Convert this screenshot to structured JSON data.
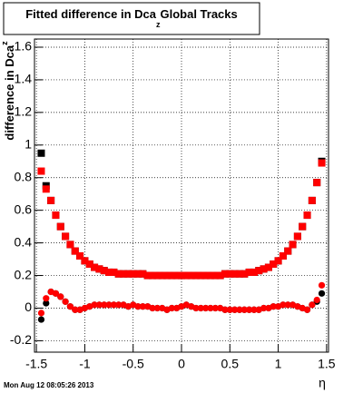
{
  "chart_data": {
    "type": "scatter",
    "title": "Fitted difference in Dca",
    "title_subscript": "z",
    "title_end": "Global Tracks",
    "x_label": "η",
    "y_label": "difference in Dca",
    "y_label_subscript": "z",
    "x": [
      -1.45,
      -1.4,
      -1.35,
      -1.3,
      -1.25,
      -1.2,
      -1.15,
      -1.1,
      -1.05,
      -1.0,
      -0.95,
      -0.9,
      -0.85,
      -0.8,
      -0.75,
      -0.7,
      -0.65,
      -0.6,
      -0.55,
      -0.5,
      -0.45,
      -0.4,
      -0.35,
      -0.3,
      -0.25,
      -0.2,
      -0.15,
      -0.1,
      -0.05,
      0,
      0.05,
      0.1,
      0.15,
      0.2,
      0.25,
      0.3,
      0.35,
      0.4,
      0.45,
      0.5,
      0.55,
      0.6,
      0.65,
      0.7,
      0.75,
      0.8,
      0.85,
      0.9,
      0.95,
      1.0,
      1.05,
      1.1,
      1.15,
      1.2,
      1.25,
      1.3,
      1.35,
      1.4,
      1.45
    ],
    "series": [
      {
        "color": "#000000",
        "marker": "square",
        "values": [
          0.95,
          0.75,
          0.66,
          0.57,
          0.5,
          0.44,
          0.39,
          0.35,
          0.32,
          0.29,
          0.27,
          0.25,
          0.24,
          0.23,
          0.22,
          0.22,
          0.21,
          0.21,
          0.21,
          0.21,
          0.21,
          0.21,
          0.2,
          0.2,
          0.2,
          0.2,
          0.2,
          0.2,
          0.2,
          0.2,
          0.2,
          0.2,
          0.2,
          0.2,
          0.2,
          0.2,
          0.2,
          0.2,
          0.21,
          0.21,
          0.21,
          0.21,
          0.21,
          0.22,
          0.22,
          0.23,
          0.24,
          0.25,
          0.27,
          0.29,
          0.32,
          0.35,
          0.39,
          0.44,
          0.5,
          0.57,
          0.66,
          0.77,
          0.9
        ]
      },
      {
        "color": "#ff0000",
        "marker": "square",
        "values": [
          0.84,
          0.73,
          0.66,
          0.57,
          0.5,
          0.44,
          0.39,
          0.35,
          0.32,
          0.29,
          0.27,
          0.25,
          0.24,
          0.23,
          0.22,
          0.22,
          0.21,
          0.21,
          0.21,
          0.21,
          0.21,
          0.21,
          0.2,
          0.2,
          0.2,
          0.2,
          0.2,
          0.2,
          0.2,
          0.2,
          0.2,
          0.2,
          0.2,
          0.2,
          0.2,
          0.2,
          0.2,
          0.2,
          0.21,
          0.21,
          0.21,
          0.21,
          0.21,
          0.22,
          0.22,
          0.23,
          0.24,
          0.25,
          0.27,
          0.29,
          0.32,
          0.35,
          0.39,
          0.44,
          0.5,
          0.57,
          0.66,
          0.77,
          0.89
        ]
      },
      {
        "color": "#000000",
        "marker": "circle",
        "values": [
          -0.07,
          0.03,
          0.1,
          0.09,
          0.07,
          0.04,
          0.01,
          -0.01,
          -0.01,
          0.0,
          0.01,
          0.02,
          0.02,
          0.02,
          0.02,
          0.02,
          0.02,
          0.02,
          0.01,
          0.02,
          0.01,
          0.01,
          0.01,
          0.0,
          0.0,
          0.0,
          -0.01,
          0.0,
          0.0,
          0.01,
          0.02,
          0.01,
          0.0,
          0.0,
          0.0,
          0.0,
          0.0,
          0.0,
          -0.01,
          -0.01,
          -0.01,
          -0.01,
          -0.01,
          -0.01,
          -0.01,
          -0.01,
          0.0,
          0.0,
          0.01,
          0.01,
          0.02,
          0.02,
          0.02,
          0.01,
          0.0,
          -0.01,
          0.02,
          0.04,
          0.09
        ]
      },
      {
        "color": "#ff0000",
        "marker": "circle",
        "values": [
          -0.03,
          0.06,
          0.1,
          0.09,
          0.07,
          0.04,
          0.01,
          -0.01,
          -0.01,
          0.0,
          0.01,
          0.02,
          0.02,
          0.02,
          0.02,
          0.02,
          0.02,
          0.02,
          0.01,
          0.02,
          0.01,
          0.01,
          0.01,
          0.0,
          0.0,
          0.0,
          -0.01,
          0.0,
          0.0,
          0.01,
          0.02,
          0.01,
          0.0,
          0.0,
          0.0,
          0.0,
          0.0,
          0.0,
          -0.01,
          -0.01,
          -0.01,
          -0.01,
          -0.01,
          -0.01,
          -0.01,
          -0.01,
          0.0,
          0.0,
          0.01,
          0.01,
          0.02,
          0.02,
          0.02,
          0.01,
          0.0,
          -0.01,
          0.02,
          0.05,
          0.14
        ]
      }
    ],
    "xlim": [
      -1.52,
      1.52
    ],
    "xticks": [
      -1.5,
      -1,
      -0.5,
      0,
      0.5,
      1,
      1.5
    ],
    "ylim": [
      -0.27,
      1.65
    ],
    "yticks": [
      -0.2,
      0,
      0.2,
      0.4,
      0.6,
      0.8,
      1,
      1.2,
      1.4,
      1.6
    ],
    "grid": true
  },
  "footer": "Mon Aug 12 08:05:26 2013"
}
